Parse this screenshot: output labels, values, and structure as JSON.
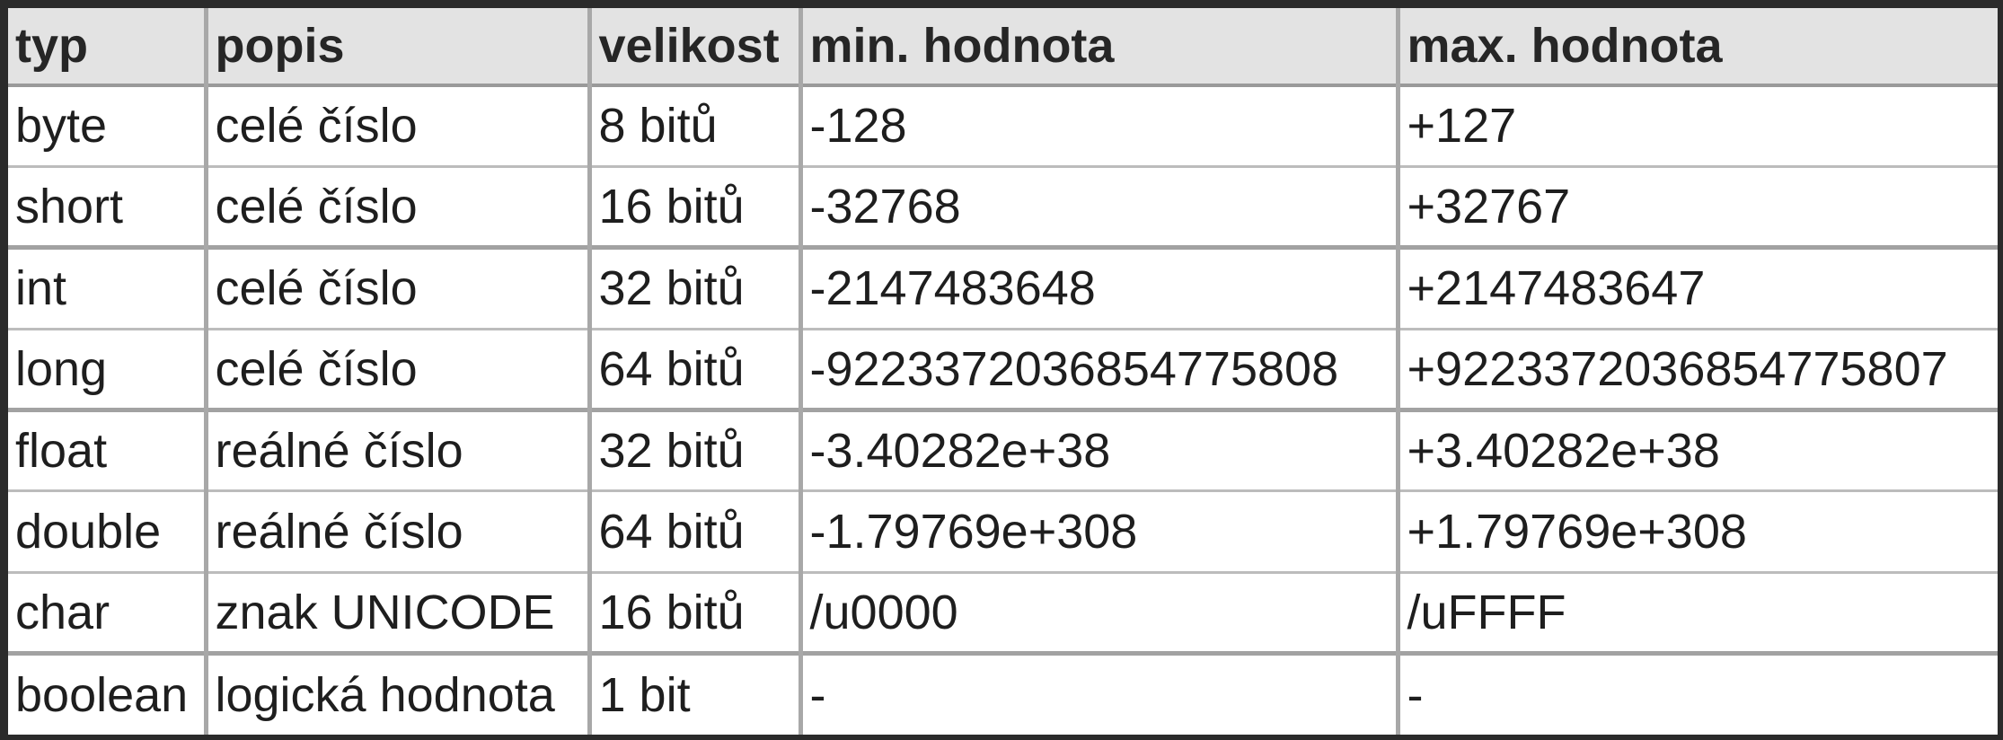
{
  "table": {
    "headers": [
      "typ",
      "popis",
      "velikost",
      "min. hodnota",
      "max. hodnota"
    ],
    "rows": [
      [
        "byte",
        "celé číslo",
        "8 bitů",
        "-128",
        "+127"
      ],
      [
        "short",
        "celé číslo",
        "16 bitů",
        "-32768",
        "+32767"
      ],
      [
        "int",
        "celé číslo",
        "32 bitů",
        "-2147483648",
        "+2147483647"
      ],
      [
        "long",
        "celé číslo",
        "64 bitů",
        "-9223372036854775808",
        "+9223372036854775807"
      ],
      [
        "float",
        "reálné číslo",
        "32 bitů",
        "-3.40282e+38",
        "+3.40282e+38"
      ],
      [
        "double",
        "reálné číslo",
        "64 bitů",
        "-1.79769e+308",
        "+1.79769e+308"
      ],
      [
        "char",
        "znak UNICODE",
        "16 bitů",
        "/u0000",
        "/uFFFF"
      ],
      [
        "boolean",
        "logická hodnota",
        "1 bit",
        "-",
        "-"
      ]
    ]
  }
}
